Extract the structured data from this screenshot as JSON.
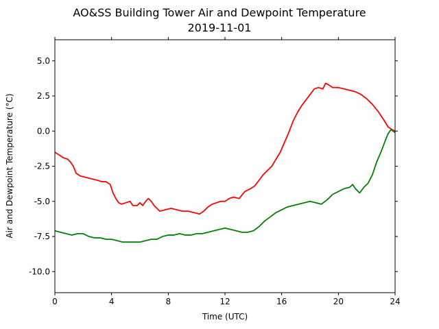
{
  "chart_data": {
    "type": "line",
    "title": "AO&SS Building Tower Air and Dewpoint Temperature",
    "subtitle": "2019-11-01",
    "xlabel": "Time (UTC)",
    "ylabel": "Air and Dewpoint Temperature (°C)",
    "xlim": [
      0,
      24
    ],
    "ylim": [
      -11.5,
      6.5
    ],
    "xticks": [
      0,
      4,
      8,
      12,
      16,
      20,
      24
    ],
    "yticks": [
      -10.0,
      -7.5,
      -5.0,
      -2.5,
      0.0,
      2.5,
      5.0
    ],
    "grid": false,
    "series": [
      {
        "color": "#ff0000",
        "x": [
          0,
          0.3,
          0.6,
          0.9,
          1.1,
          1.3,
          1.5,
          1.8,
          2.2,
          2.6,
          3.0,
          3.3,
          3.6,
          3.9,
          4.1,
          4.3,
          4.5,
          4.7,
          5.0,
          5.3,
          5.5,
          5.8,
          6.0,
          6.2,
          6.4,
          6.6,
          6.8,
          7.0,
          7.2,
          7.4,
          7.8,
          8.2,
          8.6,
          9.0,
          9.4,
          9.8,
          10.2,
          10.5,
          10.8,
          11.1,
          11.4,
          11.7,
          12.0,
          12.3,
          12.6,
          13.0,
          13.4,
          13.8,
          14.1,
          14.4,
          14.7,
          15.0,
          15.3,
          15.6,
          15.9,
          16.2,
          16.5,
          16.8,
          17.1,
          17.4,
          17.7,
          18.0,
          18.3,
          18.6,
          18.9,
          19.1,
          19.3,
          19.6,
          20.0,
          20.4,
          20.8,
          21.2,
          21.6,
          22.0,
          22.4,
          22.8,
          23.2,
          23.5,
          23.8,
          24.0
        ],
        "y": [
          -1.5,
          -1.7,
          -1.9,
          -2.0,
          -2.2,
          -2.5,
          -3.0,
          -3.2,
          -3.3,
          -3.4,
          -3.5,
          -3.6,
          -3.6,
          -3.8,
          -4.4,
          -4.8,
          -5.1,
          -5.2,
          -5.1,
          -5.0,
          -5.3,
          -5.3,
          -5.1,
          -5.3,
          -5.0,
          -4.8,
          -5.0,
          -5.3,
          -5.5,
          -5.7,
          -5.6,
          -5.5,
          -5.6,
          -5.7,
          -5.7,
          -5.8,
          -5.9,
          -5.7,
          -5.4,
          -5.2,
          -5.1,
          -5.0,
          -5.0,
          -4.8,
          -4.7,
          -4.8,
          -4.3,
          -4.1,
          -3.9,
          -3.5,
          -3.1,
          -2.8,
          -2.5,
          -2.0,
          -1.5,
          -0.8,
          -0.1,
          0.7,
          1.3,
          1.8,
          2.2,
          2.6,
          3.0,
          3.1,
          3.0,
          3.4,
          3.3,
          3.1,
          3.1,
          3.0,
          2.9,
          2.8,
          2.6,
          2.3,
          1.9,
          1.4,
          0.8,
          0.3,
          0.1,
          0.0
        ]
      },
      {
        "color": "#008000",
        "x": [
          0,
          0.4,
          0.8,
          1.2,
          1.6,
          2.0,
          2.4,
          2.8,
          3.2,
          3.6,
          4.0,
          4.4,
          4.8,
          5.2,
          5.6,
          6.0,
          6.4,
          6.8,
          7.2,
          7.6,
          8.0,
          8.4,
          8.8,
          9.2,
          9.6,
          10.0,
          10.4,
          10.8,
          11.2,
          11.6,
          12.0,
          12.4,
          12.8,
          13.2,
          13.6,
          14.0,
          14.4,
          14.8,
          15.2,
          15.6,
          16.0,
          16.4,
          16.8,
          17.2,
          17.6,
          18.0,
          18.4,
          18.8,
          19.2,
          19.6,
          20.0,
          20.4,
          20.8,
          21.0,
          21.2,
          21.5,
          21.8,
          22.1,
          22.4,
          22.7,
          23.0,
          23.3,
          23.5,
          23.7,
          24.0
        ],
        "y": [
          -7.1,
          -7.2,
          -7.3,
          -7.4,
          -7.3,
          -7.3,
          -7.5,
          -7.6,
          -7.6,
          -7.7,
          -7.7,
          -7.8,
          -7.9,
          -7.9,
          -7.9,
          -7.9,
          -7.8,
          -7.7,
          -7.7,
          -7.5,
          -7.4,
          -7.4,
          -7.3,
          -7.4,
          -7.4,
          -7.3,
          -7.3,
          -7.2,
          -7.1,
          -7.0,
          -6.9,
          -7.0,
          -7.1,
          -7.2,
          -7.2,
          -7.1,
          -6.8,
          -6.4,
          -6.1,
          -5.8,
          -5.6,
          -5.4,
          -5.3,
          -5.2,
          -5.1,
          -5.0,
          -5.1,
          -5.2,
          -4.9,
          -4.5,
          -4.3,
          -4.1,
          -4.0,
          -3.8,
          -4.1,
          -4.4,
          -4.0,
          -3.7,
          -3.1,
          -2.2,
          -1.5,
          -0.7,
          -0.2,
          0.1,
          -0.1
        ]
      }
    ]
  }
}
